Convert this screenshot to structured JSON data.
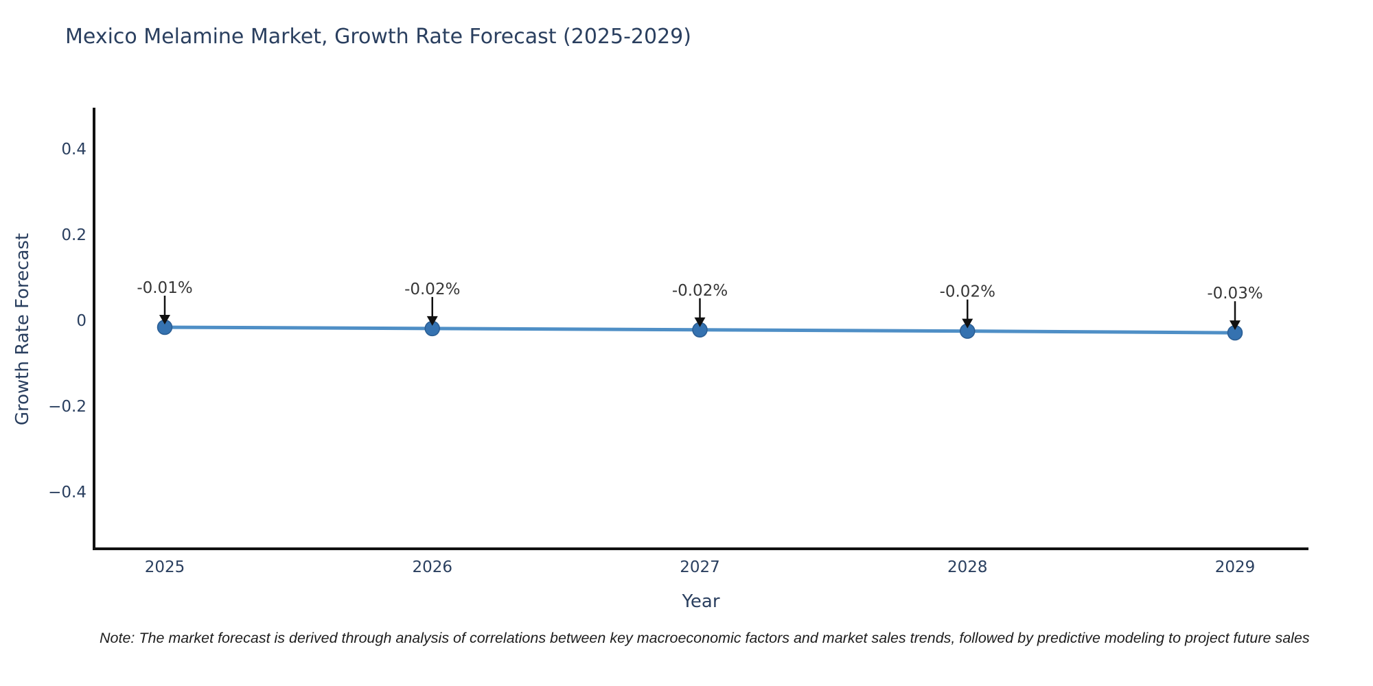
{
  "chart": {
    "title": "Mexico Melamine Market, Growth Rate Forecast (2025-2029)",
    "ylabel": "Growth Rate Forecast",
    "xlabel": "Year",
    "note": "Note: The market forecast is derived through analysis of correlations between key macroeconomic factors and market sales trends, followed by predictive modeling to project future sales"
  },
  "chart_data": {
    "type": "line",
    "title": "Mexico Melamine Market, Growth Rate Forecast (2025-2029)",
    "xlabel": "Year",
    "ylabel": "Growth Rate Forecast",
    "x": [
      2025,
      2026,
      2027,
      2028,
      2029
    ],
    "y": [
      -0.01,
      -0.02,
      -0.02,
      -0.02,
      -0.03
    ],
    "y_plotted_estimate": [
      -0.016,
      -0.019,
      -0.022,
      -0.025,
      -0.029
    ],
    "point_labels": [
      "-0.01%",
      "-0.02%",
      "-0.02%",
      "-0.02%",
      "-0.03%"
    ],
    "yticks": [
      0.4,
      0.2,
      0,
      -0.2,
      -0.4
    ],
    "ytick_labels": [
      "0.4",
      "0.2",
      "0",
      "−0.2",
      "−0.4"
    ],
    "xtick_labels": [
      "2025",
      "2026",
      "2027",
      "2028",
      "2029"
    ],
    "ylim": [
      -0.53,
      0.49
    ],
    "grid": false,
    "legend": false,
    "note": "Note: The market forecast is derived through analysis of correlations between key macroeconomic factors and market sales trends, followed by predictive modeling to project future sales",
    "colors": {
      "line": "#4f8fc6",
      "marker": "#3572b0",
      "marker_edge": "#2a5d93",
      "axis": "#111111",
      "tick_text": "#2a3f5f",
      "annotation_text": "#363636",
      "annotation_arrow": "#111111",
      "title_text": "#2a3f5f"
    }
  }
}
